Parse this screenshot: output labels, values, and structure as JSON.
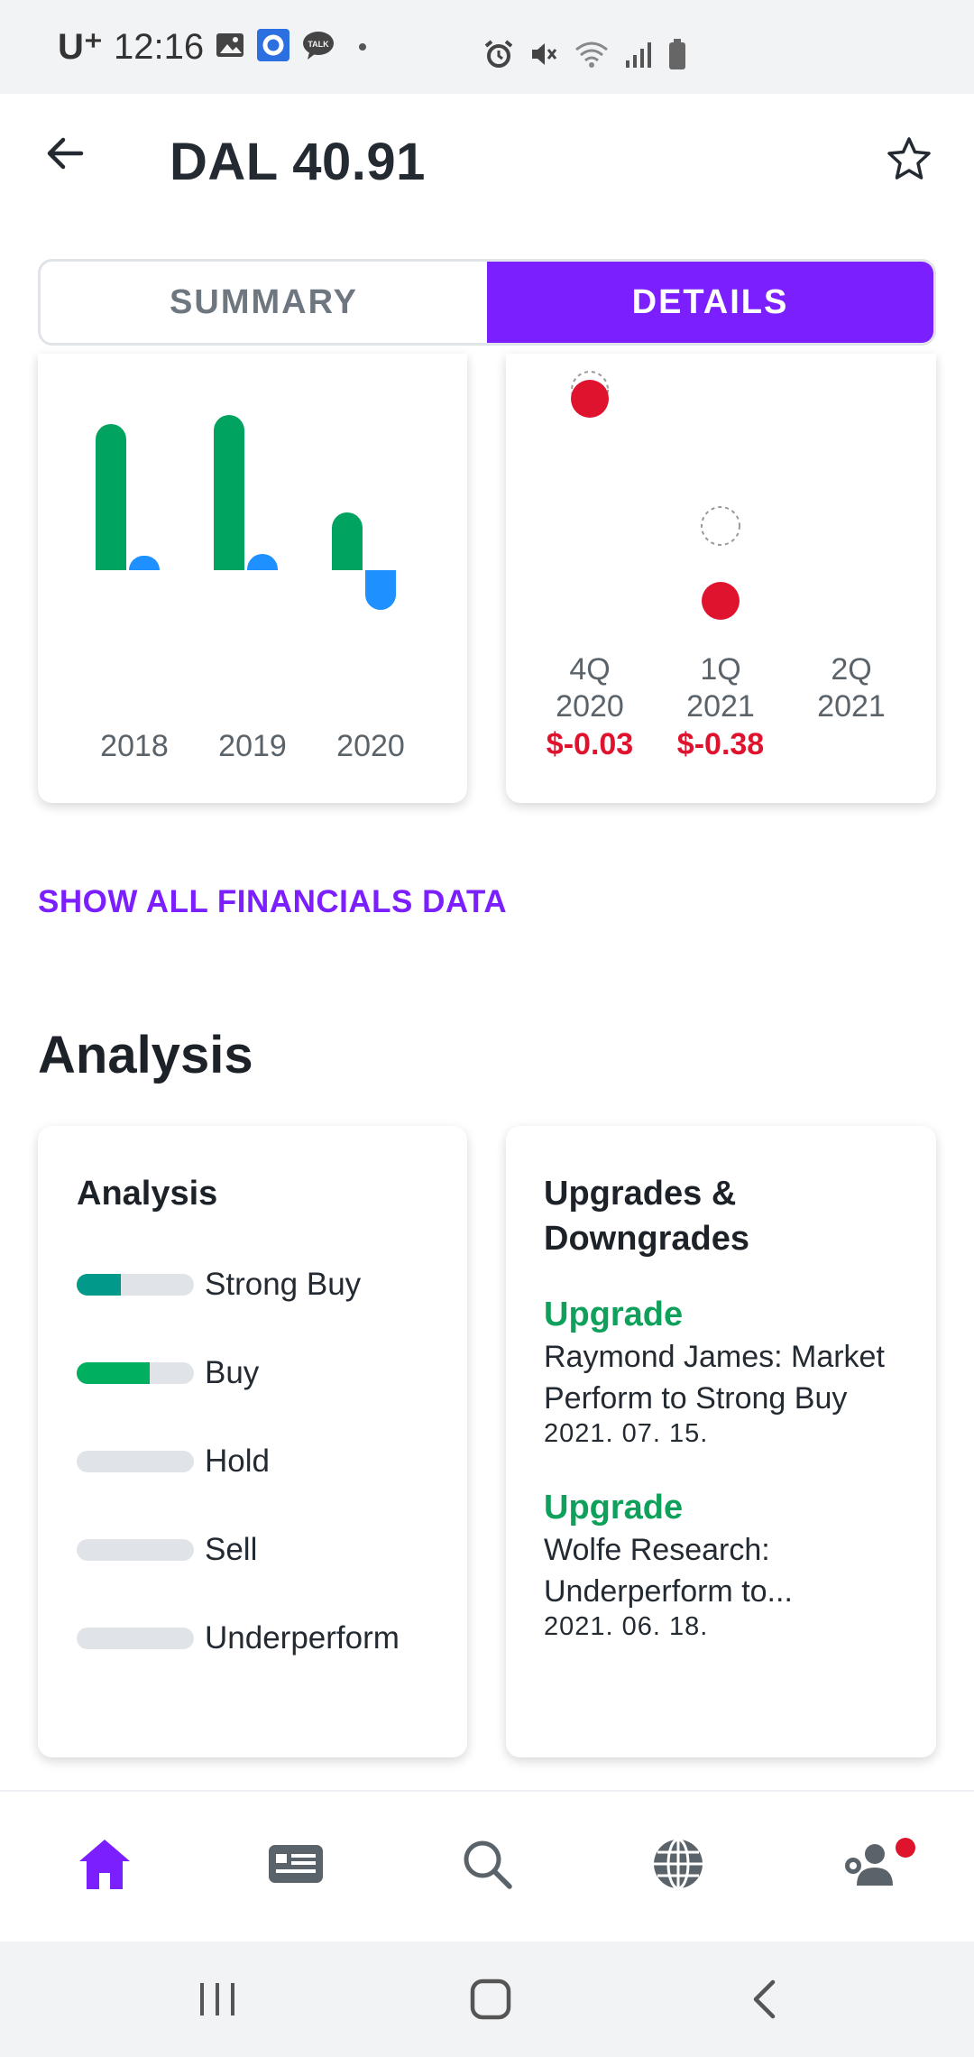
{
  "status_bar": {
    "carrier": "U⁺",
    "time": "12:16",
    "icons": [
      "gallery-icon",
      "app-icon",
      "talk-icon",
      "alarm-icon",
      "mute-icon",
      "wifi-icon",
      "signal-icon",
      "battery-icon"
    ]
  },
  "header": {
    "title": "DAL 40.91",
    "back_icon": "back-arrow-icon",
    "star_icon": "star-outline-icon"
  },
  "tabs": [
    {
      "label": "SUMMARY",
      "active": false
    },
    {
      "label": "DETAILS",
      "active": true
    }
  ],
  "revenue_chart": {
    "years": [
      "2018",
      "2019",
      "2020"
    ],
    "colors": {
      "revenue": "#00a360",
      "earnings": "#1e90ff"
    }
  },
  "earnings_chart": {
    "quarters": [
      {
        "line1": "4Q",
        "line2": "2020",
        "actual": "$-0.03"
      },
      {
        "line1": "1Q",
        "line2": "2021",
        "actual": "$-0.38"
      },
      {
        "line1": "2Q",
        "line2": "2021",
        "actual": ""
      }
    ],
    "miss_color": "#e0132e"
  },
  "financials_link": "SHOW ALL FINANCIALS DATA",
  "analysis_section": {
    "title": "Analysis",
    "card_title": "Analysis",
    "ratings": [
      {
        "label": "Strong Buy",
        "fill": 0.38,
        "color": "#00998a"
      },
      {
        "label": "Buy",
        "fill": 0.62,
        "color": "#00b060"
      },
      {
        "label": "Hold",
        "fill": 0,
        "color": "#e0e4e9"
      },
      {
        "label": "Sell",
        "fill": 0,
        "color": "#e0e4e9"
      },
      {
        "label": "Underperform",
        "fill": 0,
        "color": "#e0e4e9"
      }
    ]
  },
  "upgrades": {
    "title_line1": "Upgrades &",
    "title_line2": "Downgrades",
    "items": [
      {
        "kind": "Upgrade",
        "line1": "Raymond James: Market",
        "line2": "Perform to Strong Buy",
        "date": "2021. 07. 15."
      },
      {
        "kind": "Upgrade",
        "line1": "Wolfe Research:",
        "line2": "Underperform to...",
        "date": "2021. 06. 18."
      }
    ]
  },
  "bottom_nav": {
    "accent": "#7b1fff",
    "items": [
      "home-icon",
      "news-icon",
      "search-icon",
      "globe-icon",
      "profile-settings-icon"
    ]
  },
  "system_nav": [
    "recents-icon",
    "home-button-icon",
    "back-icon"
  ]
}
